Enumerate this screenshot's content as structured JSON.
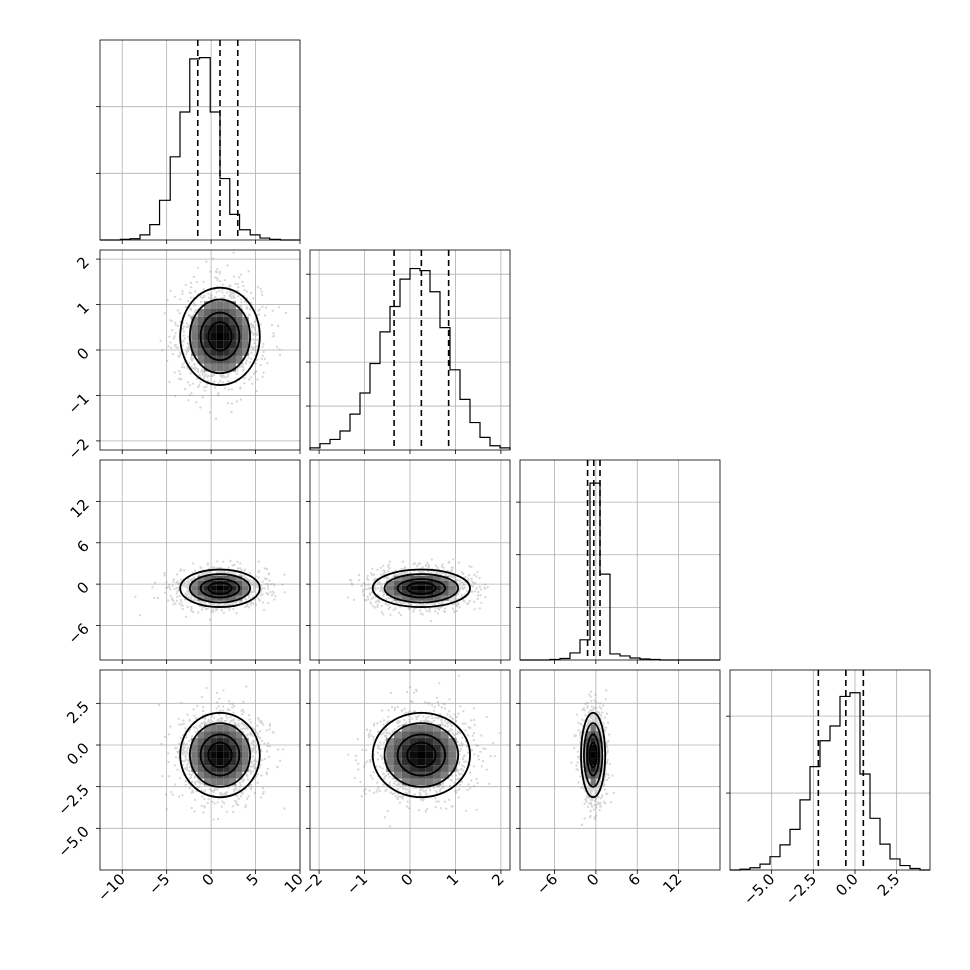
{
  "chart_data": {
    "type": "corner",
    "parameters": 4,
    "grid": true,
    "colors": {
      "line": "#000000",
      "grid": "#b0b0b0",
      "scatter": "#8a8a8a",
      "density_max": "#000000",
      "density_min": "#ffffff"
    },
    "marginals": [
      {
        "param": 0,
        "xlim": [
          -12.5,
          10
        ],
        "bin_edges": [
          -12.5,
          -11.4,
          -10.2,
          -9.1,
          -8.0,
          -6.9,
          -5.8,
          -4.6,
          -3.5,
          -2.4,
          -1.3,
          -0.1,
          1.0,
          2.1,
          3.2,
          4.4,
          5.5,
          6.6,
          7.8,
          8.9,
          10.0
        ],
        "counts": [
          0,
          0,
          1,
          2,
          8,
          24,
          62,
          130,
          200,
          283,
          285,
          200,
          96,
          40,
          16,
          8,
          3,
          1,
          0,
          0
        ],
        "quantiles": [
          -1.5,
          1.0,
          3.0
        ],
        "ymax": 300
      },
      {
        "param": 1,
        "xlim": [
          -2.2,
          2.2
        ],
        "bin_edges": [
          -2.2,
          -1.98,
          -1.76,
          -1.54,
          -1.32,
          -1.1,
          -0.88,
          -0.66,
          -0.44,
          -0.22,
          0.0,
          0.22,
          0.44,
          0.66,
          0.88,
          1.1,
          1.32,
          1.54,
          1.76,
          1.98,
          2.2
        ],
        "counts": [
          1,
          3,
          5,
          9,
          17,
          27,
          41,
          56,
          68,
          81,
          86,
          85,
          75,
          58,
          38,
          24,
          13,
          6,
          2,
          1
        ],
        "quantiles": [
          -0.35,
          0.25,
          0.85
        ],
        "ymax": 91
      },
      {
        "param": 2,
        "xlim": [
          -11,
          18
        ],
        "bin_edges": [
          -11.0,
          -9.55,
          -8.1,
          -6.65,
          -5.2,
          -3.75,
          -2.3,
          -0.85,
          0.6,
          2.05,
          3.5,
          4.95,
          6.4,
          7.85,
          9.3,
          10.75,
          12.2,
          13.65,
          15.1,
          16.55,
          18.0
        ],
        "counts": [
          0,
          0,
          0,
          1,
          3,
          14,
          40,
          350,
          170,
          12,
          8,
          4,
          2,
          1,
          0,
          0,
          0,
          0,
          0,
          0
        ],
        "quantiles": [
          -1.2,
          -0.3,
          0.6
        ],
        "ymax": 380
      },
      {
        "param": 3,
        "xlim": [
          -7.5,
          4.5
        ],
        "bin_edges": [
          -7.5,
          -6.9,
          -6.3,
          -5.7,
          -5.1,
          -4.5,
          -3.9,
          -3.3,
          -2.7,
          -2.1,
          -1.5,
          -0.9,
          -0.3,
          0.3,
          0.9,
          1.5,
          2.1,
          2.7,
          3.3,
          3.9,
          4.5
        ],
        "counts": [
          0,
          1,
          3,
          8,
          18,
          34,
          55,
          95,
          140,
          175,
          195,
          235,
          240,
          130,
          70,
          35,
          15,
          6,
          2,
          0
        ],
        "quantiles": [
          -2.2,
          -0.55,
          0.5
        ],
        "ymax": 260
      }
    ],
    "pairs": [
      {
        "x_param": 0,
        "y_param": 1,
        "xlim": [
          -12.5,
          10
        ],
        "ylim": [
          -2.2,
          2.2
        ],
        "mean": [
          1.0,
          0.3
        ],
        "std": [
          2.3,
          0.55
        ],
        "rho": 0.05
      },
      {
        "x_param": 0,
        "y_param": 2,
        "xlim": [
          -12.5,
          10
        ],
        "ylim": [
          -11,
          18
        ],
        "mean": [
          1.0,
          -0.6
        ],
        "std": [
          2.3,
          1.4
        ],
        "rho": 0.0
      },
      {
        "x_param": 1,
        "y_param": 2,
        "xlim": [
          -2.2,
          2.2
        ],
        "ylim": [
          -11,
          18
        ],
        "mean": [
          0.25,
          -0.6
        ],
        "std": [
          0.55,
          1.4
        ],
        "rho": 0.0
      },
      {
        "x_param": 0,
        "y_param": 3,
        "xlim": [
          -12.5,
          10
        ],
        "ylim": [
          -7.5,
          4.5
        ],
        "mean": [
          1.0,
          -0.6
        ],
        "std": [
          2.3,
          1.3
        ],
        "rho": 0.05
      },
      {
        "x_param": 1,
        "y_param": 3,
        "xlim": [
          -2.2,
          2.2
        ],
        "ylim": [
          -7.5,
          4.5
        ],
        "mean": [
          0.25,
          -0.6
        ],
        "std": [
          0.55,
          1.3
        ],
        "rho": 0.1
      },
      {
        "x_param": 2,
        "y_param": 3,
        "xlim": [
          -11,
          18
        ],
        "ylim": [
          -7.5,
          4.5
        ],
        "mean": [
          -0.4,
          -0.6
        ],
        "std": [
          0.9,
          1.3
        ],
        "rho": 0.0
      }
    ],
    "axes": {
      "param0": {
        "ticks": [
          -10,
          -5,
          0,
          5,
          10
        ],
        "tick_labels": [
          "−10",
          "−5",
          "0",
          "5",
          "10"
        ]
      },
      "param1": {
        "ticks": [
          -2,
          -1,
          0,
          1,
          2
        ],
        "tick_labels": [
          "−2",
          "−1",
          "0",
          "1",
          "2"
        ]
      },
      "param2": {
        "ticks": [
          -6,
          0,
          6,
          12
        ],
        "tick_labels": [
          "−6",
          "0",
          "6",
          "12"
        ]
      },
      "param3": {
        "ticks": [
          -5,
          -2.5,
          0,
          2.5
        ],
        "tick_labels": [
          "−5.0",
          "−2.5",
          "0.0",
          "2.5"
        ]
      }
    }
  }
}
